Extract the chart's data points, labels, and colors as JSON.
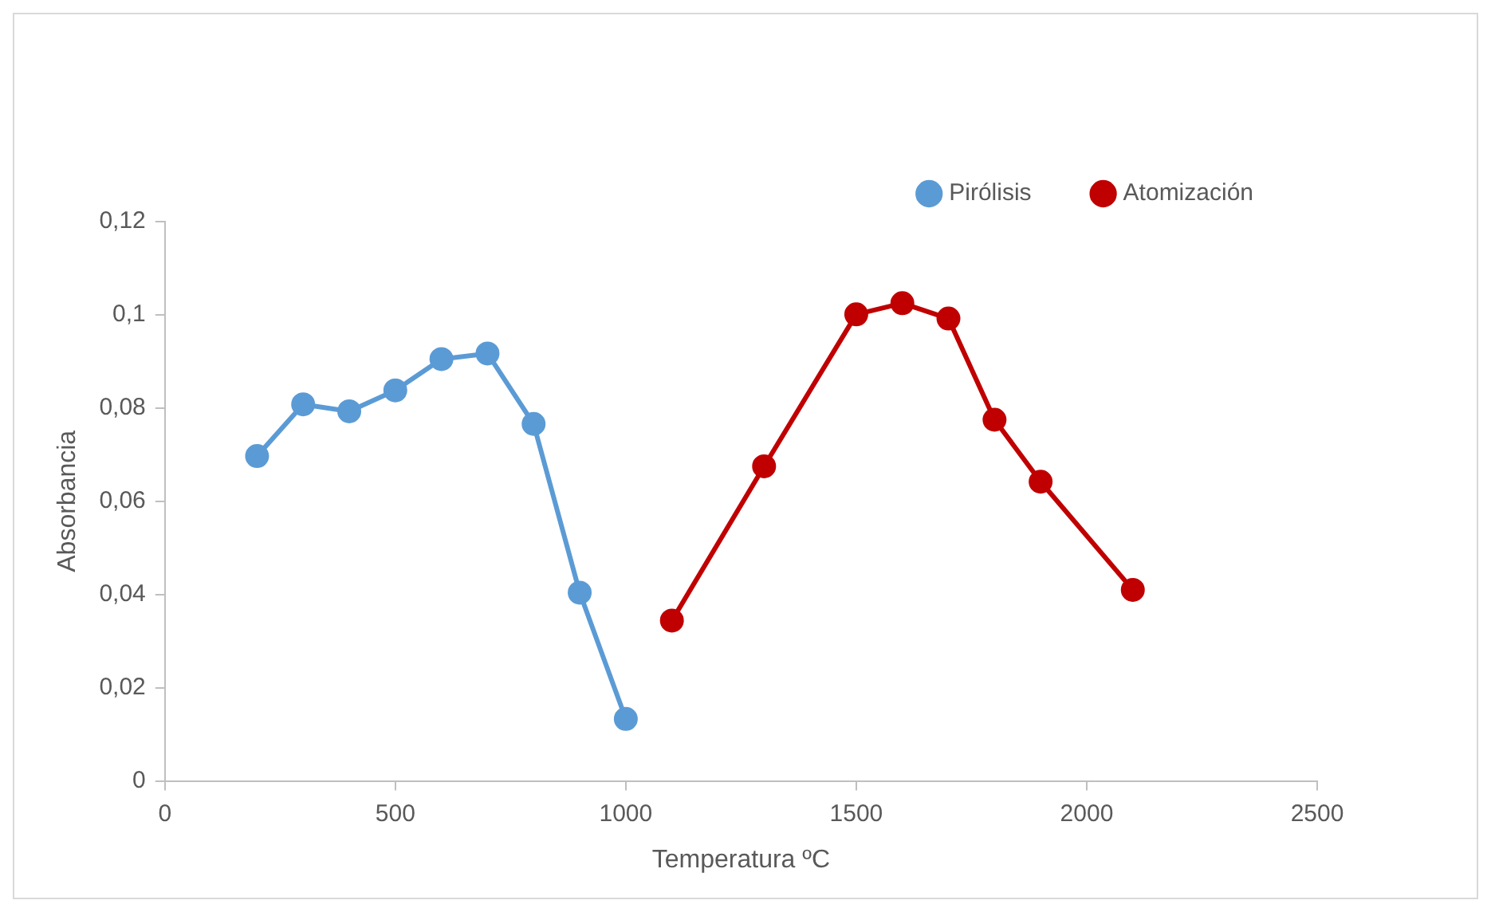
{
  "chart_data": {
    "type": "line",
    "xlabel": "Temperatura ºC",
    "ylabel": "Absorbancia",
    "xlim": [
      0,
      2500
    ],
    "xticks": [
      0,
      500,
      1000,
      1500,
      2000,
      2500
    ],
    "ylim": [
      0,
      0.12
    ],
    "yticks": [
      {
        "value": 0,
        "label": "0"
      },
      {
        "value": 0.02,
        "label": "0,02"
      },
      {
        "value": 0.04,
        "label": "0,04"
      },
      {
        "value": 0.06,
        "label": "0,06"
      },
      {
        "value": 0.08,
        "label": "0,08"
      },
      {
        "value": 0.1,
        "label": "0,1"
      },
      {
        "value": 0.12,
        "label": "0,12"
      }
    ],
    "grid": false,
    "legend": "top right",
    "marker": "circle",
    "line_style": "solid",
    "series": [
      {
        "name": "Pirólisis",
        "color": "#5b9bd5",
        "x": [
          200,
          300,
          400,
          500,
          600,
          700,
          800,
          900,
          1000
        ],
        "values": [
          0.0697,
          0.0808,
          0.0793,
          0.0838,
          0.0905,
          0.0917,
          0.0766,
          0.0404,
          0.0133
        ]
      },
      {
        "name": "Atomización",
        "color": "#c00000",
        "x": [
          1100,
          1300,
          1500,
          1600,
          1700,
          1800,
          1900,
          2100
        ],
        "values": [
          0.0344,
          0.0675,
          0.1001,
          0.1025,
          0.0992,
          0.0775,
          0.0642,
          0.041
        ]
      }
    ]
  }
}
